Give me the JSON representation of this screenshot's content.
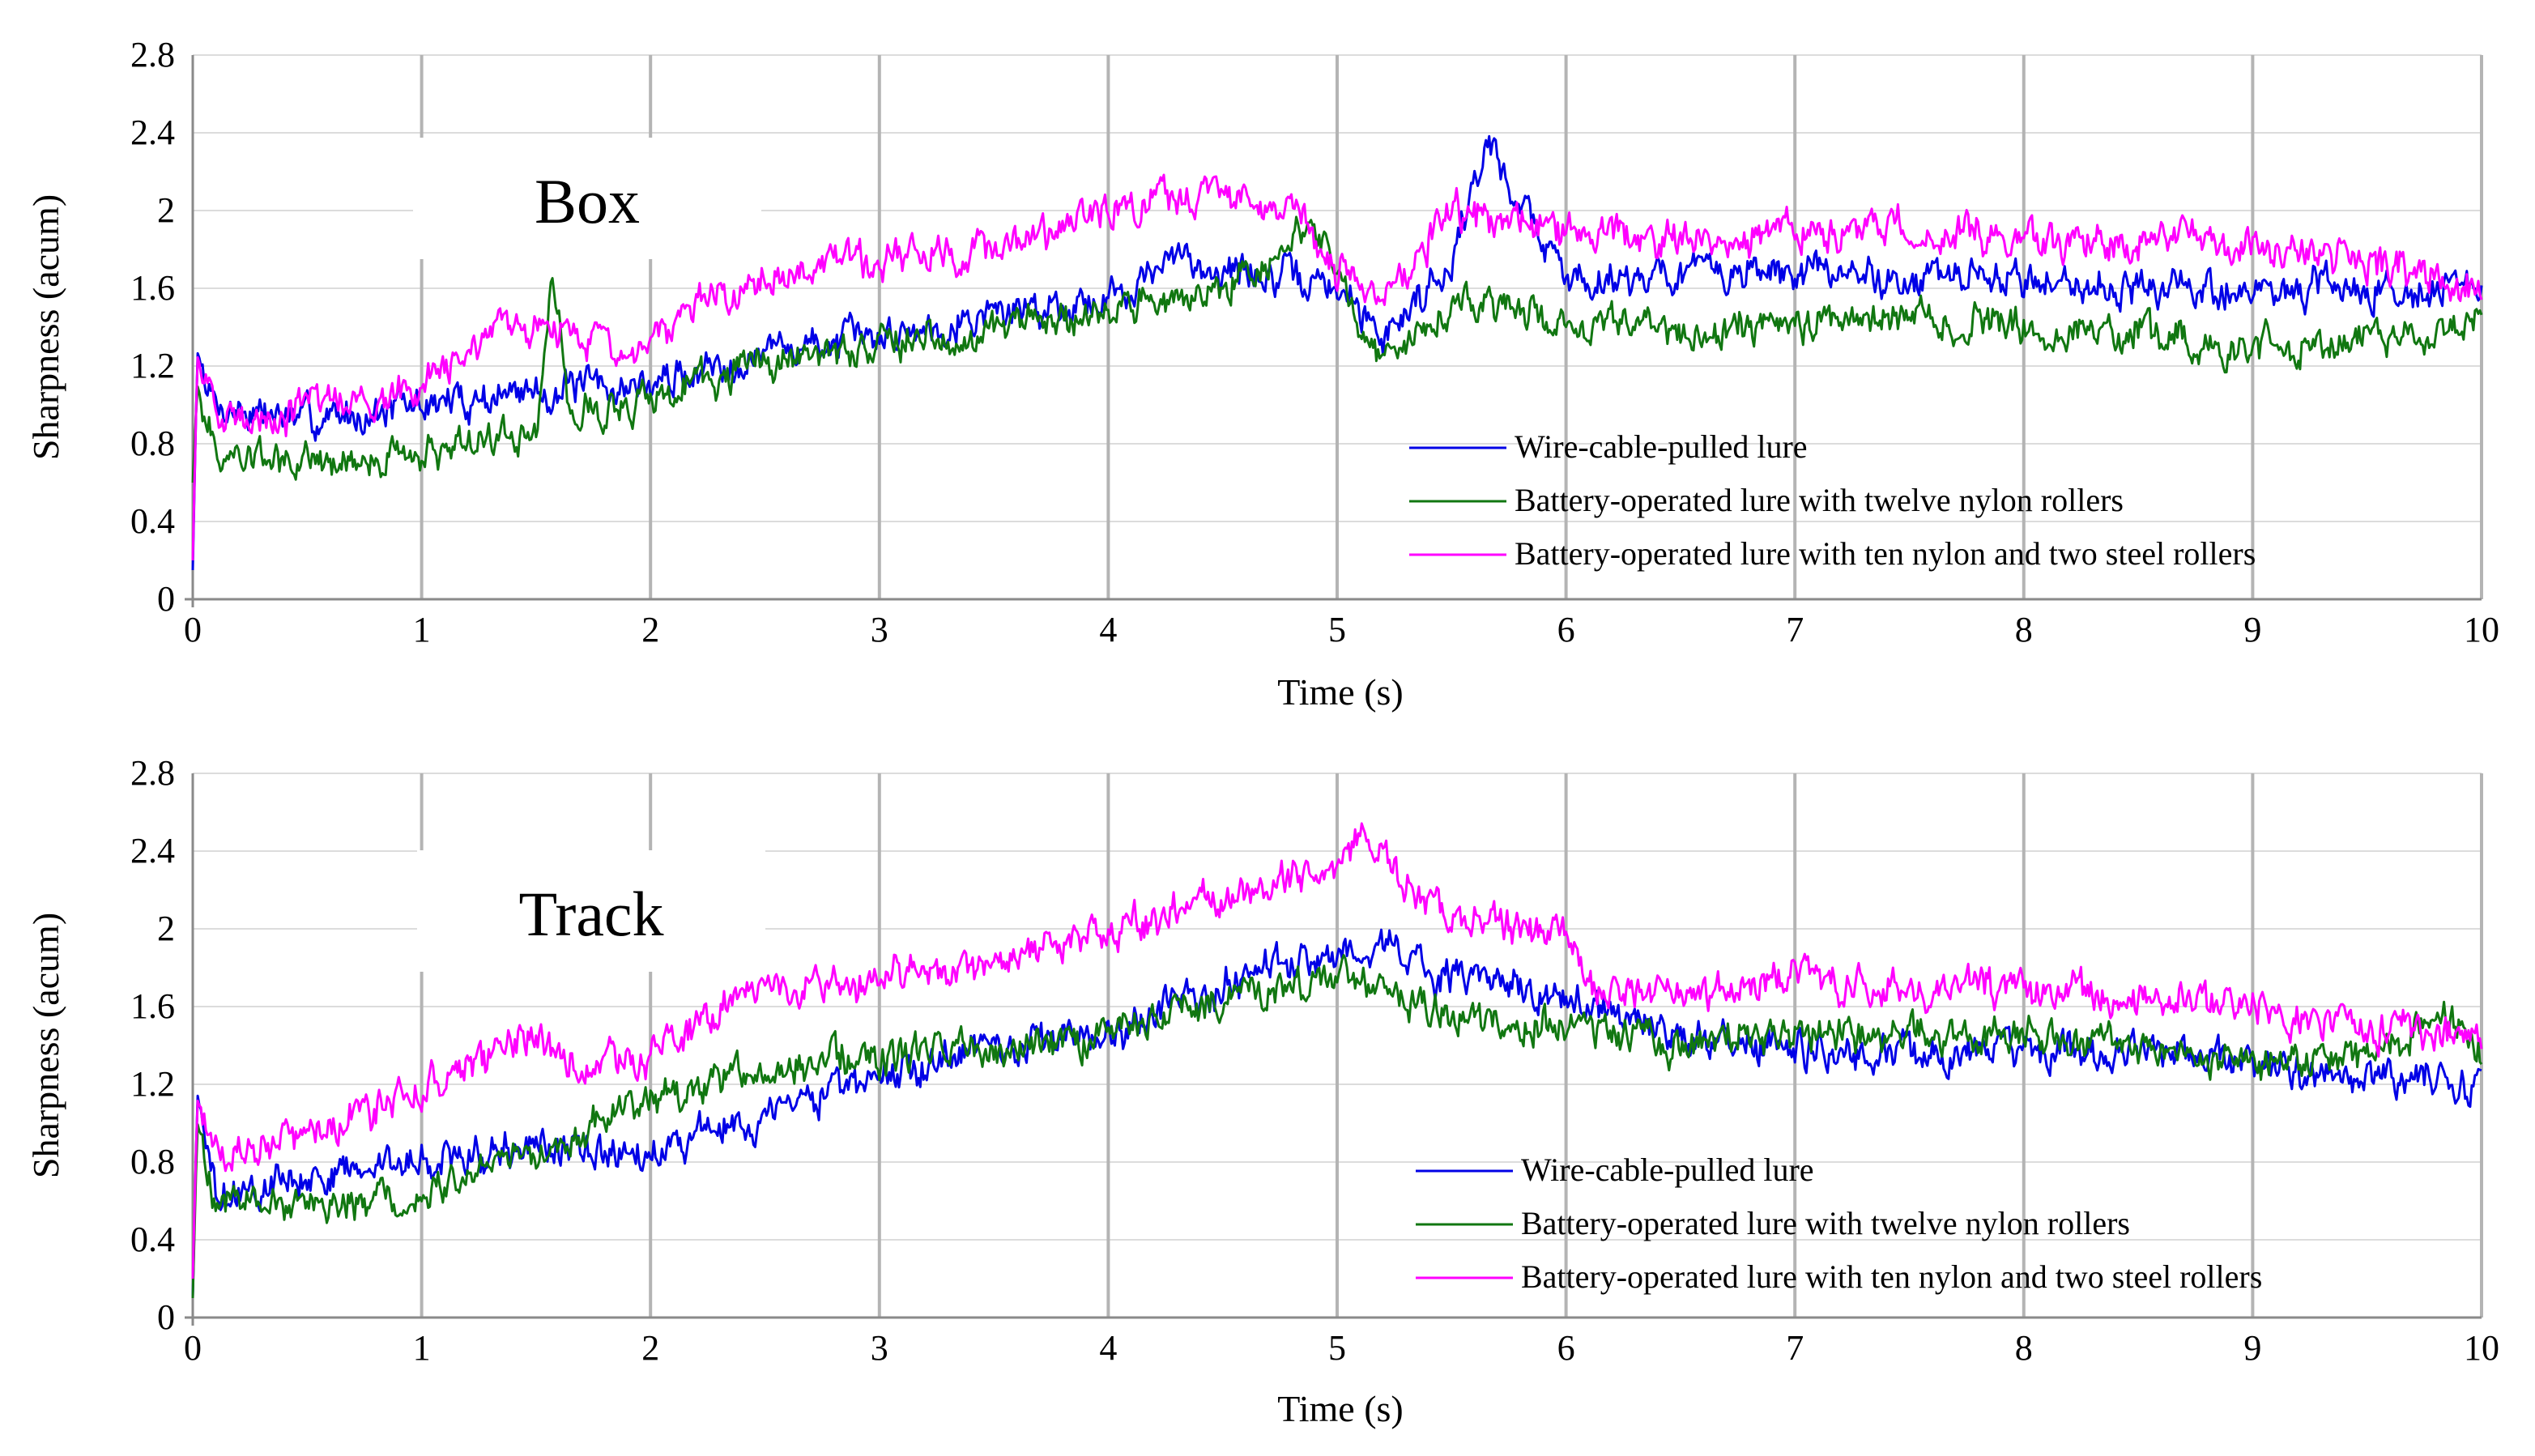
{
  "chart_data": [
    {
      "type": "line",
      "panel_label": "Box",
      "xlabel": "Time (s)",
      "ylabel": "Sharpness (acum)",
      "xlim": [
        0,
        10
      ],
      "ylim": [
        0,
        2.8
      ],
      "x_ticks": [
        0,
        1,
        2,
        3,
        4,
        5,
        6,
        7,
        8,
        9,
        10
      ],
      "y_ticks": [
        0,
        0.4,
        0.8,
        1.2,
        1.6,
        2,
        2.4,
        2.8
      ],
      "grid": true,
      "legend_position": "bottom-right",
      "series": [
        {
          "name": "Wire-cable-pulled lure",
          "color": "#0000e6",
          "x": [
            0,
            0.02,
            0.1,
            0.5,
            1,
            1.5,
            2,
            2.5,
            3,
            3.5,
            4,
            4.3,
            4.5,
            5,
            5.2,
            5.5,
            5.65,
            6,
            6.5,
            7,
            7.5,
            8,
            8.5,
            9,
            9.5,
            10
          ],
          "values": [
            0.15,
            1.27,
            1.0,
            0.92,
            1.0,
            1.07,
            1.1,
            1.28,
            1.35,
            1.48,
            1.55,
            1.75,
            1.7,
            1.6,
            1.35,
            1.75,
            2.35,
            1.65,
            1.68,
            1.68,
            1.65,
            1.65,
            1.6,
            1.58,
            1.6,
            1.6
          ]
        },
        {
          "name": "Battery-operated lure with twelve nylon rollers",
          "color": "#117711",
          "x": [
            0,
            0.02,
            0.1,
            0.5,
            1,
            1.2,
            1.5,
            1.57,
            1.65,
            2,
            2.5,
            3,
            3.5,
            4,
            4.5,
            4.9,
            5.2,
            5.5,
            6,
            6.5,
            7,
            7.5,
            8,
            8.5,
            9,
            9.5,
            10
          ],
          "values": [
            0.6,
            1.1,
            0.75,
            0.7,
            0.75,
            0.82,
            0.85,
            1.68,
            0.95,
            1.02,
            1.22,
            1.32,
            1.38,
            1.45,
            1.6,
            1.95,
            1.2,
            1.55,
            1.4,
            1.35,
            1.42,
            1.45,
            1.4,
            1.38,
            1.3,
            1.35,
            1.42
          ]
        },
        {
          "name": "Battery-operated lure with ten nylon and two steel rollers",
          "color": "#ff00ff",
          "x": [
            0,
            0.02,
            0.1,
            0.5,
            1,
            1.5,
            1.9,
            2.2,
            2.5,
            3,
            3.5,
            4,
            4.5,
            4.8,
            5,
            5.2,
            5.5,
            6,
            6.5,
            7,
            7.5,
            8,
            8.5,
            9,
            9.5,
            10
          ],
          "values": [
            0.2,
            1.25,
            0.92,
            0.98,
            1.1,
            1.45,
            1.25,
            1.5,
            1.65,
            1.75,
            1.8,
            1.98,
            2.1,
            2.0,
            1.7,
            1.55,
            2.0,
            1.88,
            1.85,
            1.88,
            1.9,
            1.85,
            1.85,
            1.82,
            1.75,
            1.6
          ]
        }
      ]
    },
    {
      "type": "line",
      "panel_label": "Track",
      "xlabel": "Time (s)",
      "ylabel": "Sharpness (acum)",
      "xlim": [
        0,
        10
      ],
      "ylim": [
        0,
        2.8
      ],
      "x_ticks": [
        0,
        1,
        2,
        3,
        4,
        5,
        6,
        7,
        8,
        9,
        10
      ],
      "y_ticks": [
        0,
        0.4,
        0.8,
        1.2,
        1.6,
        2,
        2.4,
        2.8
      ],
      "grid": true,
      "legend_position": "bottom-right",
      "series": [
        {
          "name": "Wire-cable-pulled lure",
          "color": "#0000e6",
          "x": [
            0,
            0.02,
            0.1,
            0.5,
            1,
            1.5,
            2,
            2.5,
            3,
            3.5,
            4,
            4.5,
            5,
            5.2,
            5.5,
            6,
            6.5,
            7,
            7.5,
            8,
            8.5,
            9,
            9.5,
            10
          ],
          "values": [
            0.1,
            1.15,
            0.62,
            0.72,
            0.82,
            0.88,
            0.85,
            1.05,
            1.25,
            1.38,
            1.45,
            1.7,
            1.85,
            1.92,
            1.75,
            1.65,
            1.45,
            1.38,
            1.35,
            1.38,
            1.35,
            1.3,
            1.25,
            1.22
          ]
        },
        {
          "name": "Battery-operated lure with twelve nylon rollers",
          "color": "#117711",
          "x": [
            0,
            0.02,
            0.1,
            0.5,
            1,
            1.5,
            2,
            2.5,
            3,
            3.5,
            4,
            4.5,
            5,
            5.5,
            6,
            6.5,
            7,
            7.5,
            8,
            8.5,
            9,
            9.5,
            9.85,
            10
          ],
          "values": [
            0.1,
            1.0,
            0.62,
            0.55,
            0.65,
            0.85,
            1.1,
            1.3,
            1.35,
            1.38,
            1.45,
            1.65,
            1.75,
            1.55,
            1.5,
            1.4,
            1.45,
            1.48,
            1.45,
            1.4,
            1.3,
            1.35,
            1.55,
            1.35
          ]
        },
        {
          "name": "Battery-operated lure with ten nylon and two steel rollers",
          "color": "#ff00ff",
          "x": [
            0,
            0.02,
            0.1,
            0.5,
            1,
            1.5,
            1.7,
            2,
            2.4,
            2.5,
            3,
            3.5,
            4,
            4.5,
            5,
            5.1,
            5.5,
            6,
            6.1,
            6.5,
            7,
            7.5,
            8,
            8.5,
            9,
            9.5,
            10
          ],
          "values": [
            0.2,
            1.12,
            0.85,
            0.95,
            1.15,
            1.45,
            1.3,
            1.35,
            1.65,
            1.7,
            1.75,
            1.8,
            2.0,
            2.15,
            2.3,
            2.45,
            2.05,
            2.0,
            1.7,
            1.65,
            1.75,
            1.7,
            1.7,
            1.65,
            1.6,
            1.5,
            1.45
          ]
        }
      ]
    }
  ]
}
